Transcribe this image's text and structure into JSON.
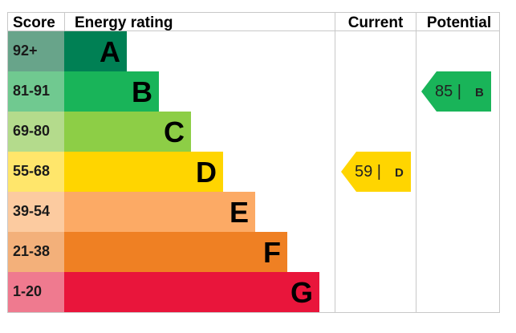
{
  "headers": {
    "score": "Score",
    "rating": "Energy rating",
    "current": "Current",
    "potential": "Potential"
  },
  "chart_data": {
    "type": "bar",
    "title": "",
    "categories": [
      "A",
      "B",
      "C",
      "D",
      "E",
      "F",
      "G"
    ],
    "score_ranges": [
      "92+",
      "81-91",
      "69-80",
      "55-68",
      "39-54",
      "21-38",
      "1-20"
    ],
    "band_colors": [
      "#008054",
      "#19b459",
      "#8dce46",
      "#ffd500",
      "#fcaa65",
      "#ef8023",
      "#e9153b"
    ],
    "score_cell_colors": [
      "#68a48a",
      "#70c990",
      "#b4db8c",
      "#ffe66b",
      "#fccba0",
      "#f3b07a",
      "#ef7a8f"
    ],
    "current": {
      "value": 59,
      "band": "D",
      "label": "59 |",
      "color": "#ffd500"
    },
    "potential": {
      "value": 85,
      "band": "B",
      "label": "85 |",
      "color": "#19b459"
    }
  }
}
